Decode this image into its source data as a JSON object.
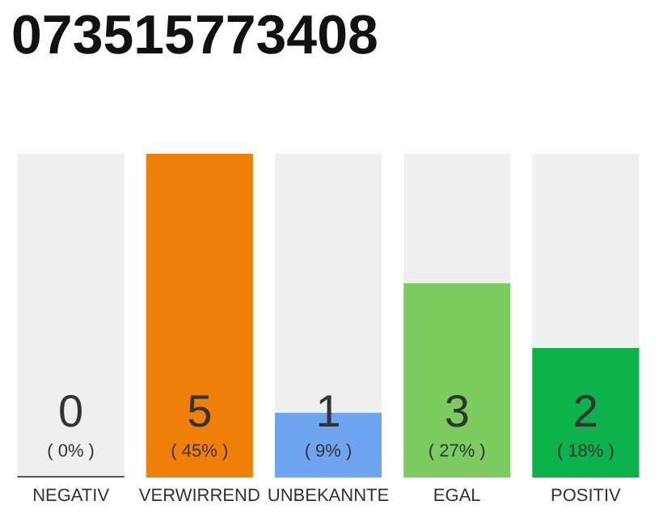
{
  "chart_data": {
    "type": "bar",
    "title": "073515773408",
    "ylim": [
      0,
      5
    ],
    "categories": [
      "NEGATIV",
      "VERWIRREND",
      "UNBEKANNTE",
      "EGAL",
      "POSITIV"
    ],
    "values": [
      0,
      5,
      1,
      3,
      2
    ],
    "colors": [
      "#555555",
      "#f07f0a",
      "#6fa5f0",
      "#7ccc60",
      "#0db14b"
    ],
    "value_labels": [
      "0\n( 0% )",
      "5\n( 45% )",
      "1\n( 9% )",
      "3\n( 27% )",
      "2\n( 18% )"
    ]
  }
}
